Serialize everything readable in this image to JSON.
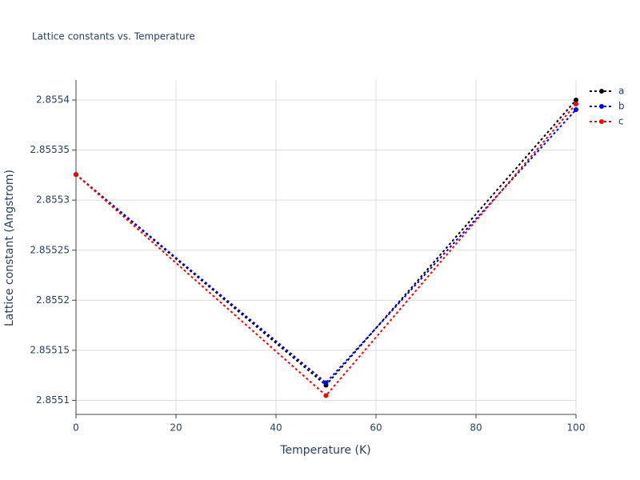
{
  "chart_data": {
    "type": "line",
    "title": "Lattice constants vs. Temperature",
    "x_label": "Temperature (K)",
    "y_label": "Lattice constant (Angstrom)",
    "x": [
      0,
      50,
      100
    ],
    "series": [
      {
        "name": "a",
        "color": "#000000",
        "values": [
          2.8553256,
          2.8551152,
          2.8554
        ]
      },
      {
        "name": "b",
        "color": "#0000ff",
        "values": [
          2.8553256,
          2.8551176,
          2.8553904
        ]
      },
      {
        "name": "c",
        "color": "#ff0000",
        "values": [
          2.8553256,
          2.8551048,
          2.855396
        ]
      }
    ],
    "xlim": [
      0,
      100
    ],
    "xticks": [
      0,
      20,
      40,
      60,
      80,
      100
    ],
    "ylim": [
      2.855086,
      2.85542
    ],
    "yticks": [
      2.8551,
      2.85515,
      2.8552,
      2.85525,
      2.8553,
      2.85535,
      2.8554
    ],
    "grid": true,
    "legend": "top-right"
  }
}
